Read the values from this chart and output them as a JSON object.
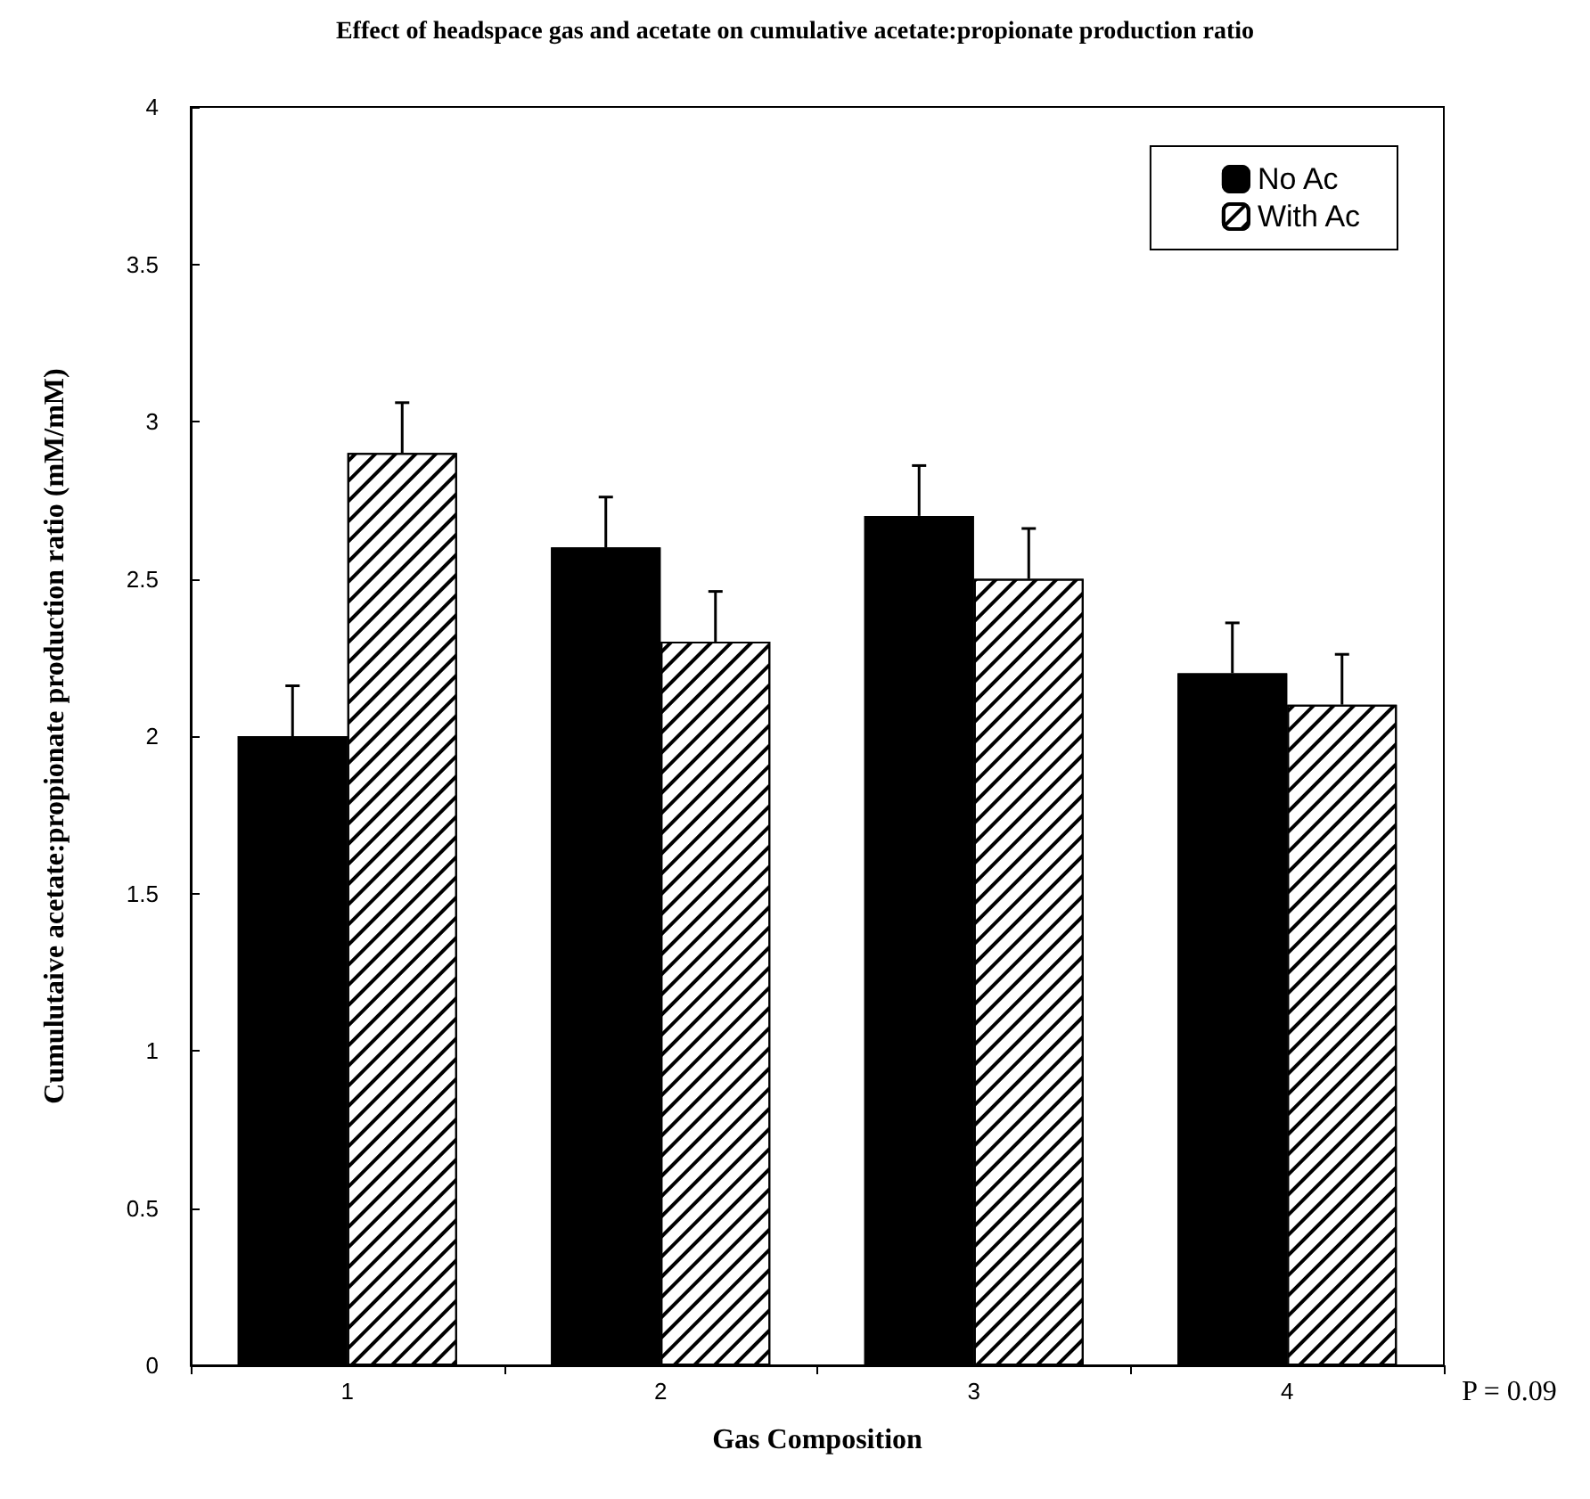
{
  "chart_data": {
    "type": "bar",
    "title": "Effect of headspace gas and acetate on cumulative acetate:propionate production ratio",
    "xlabel": "Gas Composition",
    "ylabel": "Cumulutaive acetate:propionate production ratio (mM/mM)",
    "annotations": [
      "P = 0.09"
    ],
    "categories": [
      "1",
      "2",
      "3",
      "4"
    ],
    "series": [
      {
        "name": "No Ac",
        "color": "#000000",
        "values": [
          2.0,
          2.6,
          2.7,
          2.2
        ],
        "errors": [
          [
            2.0,
            2.16
          ],
          [
            2.6,
            2.76
          ],
          [
            2.7,
            2.86
          ],
          [
            2.2,
            2.36
          ]
        ]
      },
      {
        "name": "With Ac",
        "color": "#ffffff",
        "values": [
          2.9,
          2.3,
          2.5,
          2.1
        ],
        "errors": [
          [
            2.9,
            3.06
          ],
          [
            2.3,
            2.46
          ],
          [
            2.5,
            2.66
          ],
          [
            2.1,
            2.26
          ]
        ]
      }
    ],
    "ylim": [
      0,
      4
    ],
    "yticks": [
      0,
      0.5,
      1,
      1.5,
      2,
      2.5,
      3,
      3.5,
      4
    ],
    "grid": false,
    "legend": "top right"
  }
}
